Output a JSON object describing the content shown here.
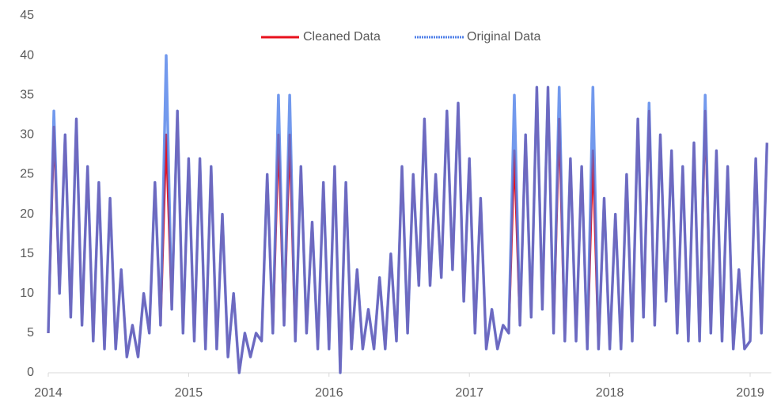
{
  "chart_data": {
    "type": "line",
    "x": [
      2014.0,
      2014.04,
      2014.08,
      2014.12,
      2014.16,
      2014.2,
      2014.24,
      2014.28,
      2014.32,
      2014.36,
      2014.4,
      2014.44,
      2014.48,
      2014.52,
      2014.56,
      2014.6,
      2014.64,
      2014.68,
      2014.72,
      2014.76,
      2014.8,
      2014.84,
      2014.88,
      2014.92,
      2014.96,
      2015.0,
      2015.04,
      2015.08,
      2015.12,
      2015.16,
      2015.2,
      2015.24,
      2015.28,
      2015.32,
      2015.36,
      2015.4,
      2015.44,
      2015.48,
      2015.52,
      2015.56,
      2015.6,
      2015.64,
      2015.68,
      2015.72,
      2015.76,
      2015.8,
      2015.84,
      2015.88,
      2015.92,
      2015.96,
      2016.0,
      2016.04,
      2016.08,
      2016.12,
      2016.16,
      2016.2,
      2016.24,
      2016.28,
      2016.32,
      2016.36,
      2016.4,
      2016.44,
      2016.48,
      2016.52,
      2016.56,
      2016.6,
      2016.64,
      2016.68,
      2016.72,
      2016.76,
      2016.8,
      2016.84,
      2016.88,
      2016.92,
      2016.96,
      2017.0,
      2017.04,
      2017.08,
      2017.12,
      2017.16,
      2017.2,
      2017.24,
      2017.28,
      2017.32,
      2017.36,
      2017.4,
      2017.44,
      2017.48,
      2017.52,
      2017.56,
      2017.6,
      2017.64,
      2017.68,
      2017.72,
      2017.76,
      2017.8,
      2017.84,
      2017.88,
      2017.92,
      2017.96,
      2018.0,
      2018.04,
      2018.08,
      2018.12,
      2018.16,
      2018.2,
      2018.24,
      2018.28,
      2018.32,
      2018.36,
      2018.4,
      2018.44,
      2018.48,
      2018.52,
      2018.56,
      2018.6,
      2018.64,
      2018.68,
      2018.72,
      2018.76,
      2018.8,
      2018.84,
      2018.88,
      2018.92,
      2018.96,
      2019.0,
      2019.04,
      2019.08,
      2019.12
    ],
    "series": [
      {
        "name": "Cleaned Data",
        "color": "#e8101c",
        "values": [
          5,
          31,
          10,
          30,
          7,
          32,
          6,
          26,
          4,
          24,
          3,
          22,
          3,
          13,
          2,
          6,
          2,
          10,
          5,
          24,
          6,
          30,
          8,
          33,
          5,
          27,
          4,
          27,
          3,
          26,
          3,
          20,
          2,
          10,
          0,
          5,
          2,
          5,
          4,
          25,
          5,
          30,
          6,
          30,
          4,
          26,
          5,
          19,
          3,
          24,
          3,
          26,
          0,
          24,
          3,
          13,
          3,
          8,
          3,
          12,
          3,
          15,
          4,
          26,
          5,
          25,
          11,
          32,
          11,
          25,
          12,
          33,
          13,
          34,
          9,
          27,
          5,
          22,
          3,
          8,
          3,
          6,
          5,
          28,
          6,
          30,
          7,
          36,
          8,
          36,
          5,
          32,
          4,
          27,
          4,
          26,
          3,
          28,
          3,
          22,
          3,
          20,
          3,
          25,
          4,
          32,
          7,
          33,
          6,
          30,
          9,
          28,
          5,
          26,
          4,
          29,
          4,
          33,
          5,
          28,
          4,
          26,
          3,
          13,
          3,
          4,
          27,
          5,
          29
        ]
      },
      {
        "name": "Original Data",
        "color": "#4f7fe8",
        "values": [
          5,
          33,
          10,
          30,
          7,
          32,
          6,
          26,
          4,
          24,
          3,
          22,
          3,
          13,
          2,
          6,
          2,
          10,
          5,
          24,
          6,
          40,
          8,
          33,
          5,
          27,
          4,
          27,
          3,
          26,
          3,
          20,
          2,
          10,
          0,
          5,
          2,
          5,
          4,
          25,
          5,
          35,
          6,
          35,
          4,
          26,
          5,
          19,
          3,
          24,
          3,
          26,
          0,
          24,
          3,
          13,
          3,
          8,
          3,
          12,
          3,
          15,
          4,
          26,
          5,
          25,
          11,
          32,
          11,
          25,
          12,
          33,
          13,
          34,
          9,
          27,
          5,
          22,
          3,
          8,
          3,
          6,
          5,
          35,
          6,
          30,
          7,
          36,
          8,
          36,
          5,
          36,
          4,
          27,
          4,
          26,
          3,
          36,
          3,
          22,
          3,
          20,
          3,
          25,
          4,
          32,
          7,
          34,
          6,
          30,
          9,
          28,
          5,
          26,
          4,
          29,
          4,
          35,
          5,
          28,
          4,
          26,
          3,
          13,
          3,
          4,
          27,
          5,
          29
        ]
      }
    ],
    "xlim": [
      2014,
      2019.15
    ],
    "xticks": [
      2014,
      2015,
      2016,
      2017,
      2018,
      2019
    ],
    "ylim": [
      0,
      45
    ],
    "yticks": [
      0,
      5,
      10,
      15,
      20,
      25,
      30,
      35,
      40,
      45
    ],
    "legend": "top"
  }
}
